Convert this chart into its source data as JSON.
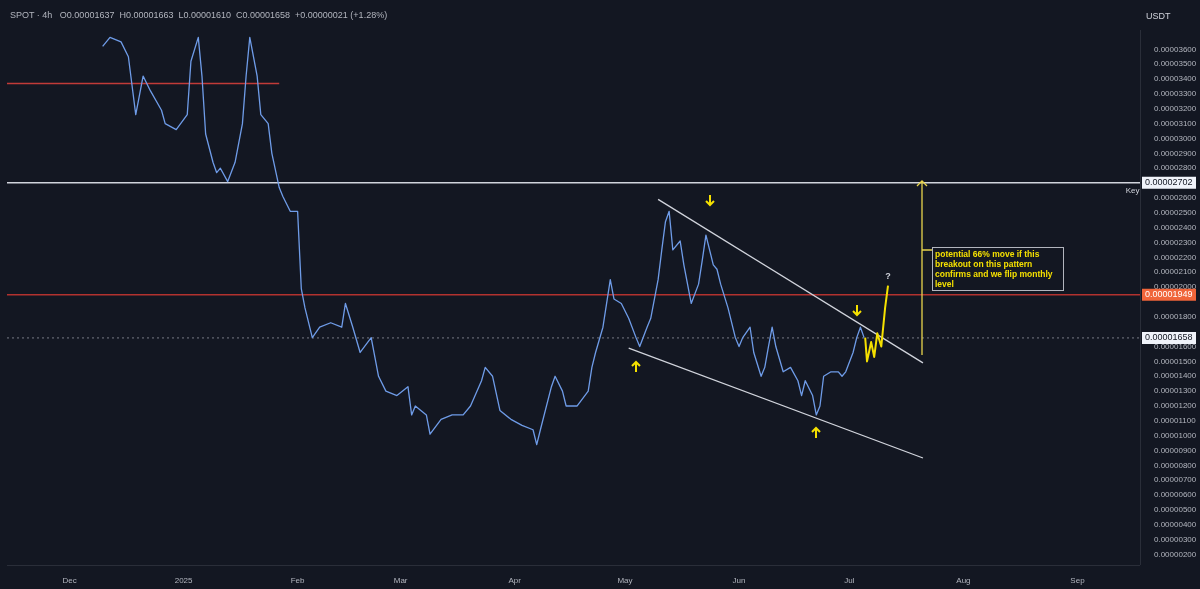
{
  "chart_data": {
    "type": "line",
    "title": "SPOT · 4h",
    "subtitle": "O0.00001637  H0.00001663  L0.00001610  C0.00001658  +0.00000021 (+1.28%)",
    "ylabel": "USDT",
    "xlim": [
      "2024-11-14",
      "2025-09-18"
    ],
    "ylim": [
      1.3e-06,
      3.73e-05
    ],
    "xticks": [
      {
        "value": "2024-12-01",
        "label": "Dec"
      },
      {
        "value": "2025-01-01",
        "label": "2025"
      },
      {
        "value": "2025-02-01",
        "label": "Feb"
      },
      {
        "value": "2025-03-01",
        "label": "Mar"
      },
      {
        "value": "2025-04-01",
        "label": "Apr"
      },
      {
        "value": "2025-05-01",
        "label": "May"
      },
      {
        "value": "2025-06-01",
        "label": "Jun"
      },
      {
        "value": "2025-07-01",
        "label": "Jul"
      },
      {
        "value": "2025-08-01",
        "label": "Aug"
      },
      {
        "value": "2025-09-01",
        "label": "Sep"
      }
    ],
    "yticks": [
      {
        "value": 2e-06,
        "label": "0.00000200"
      },
      {
        "value": 3e-06,
        "label": "0.00000300"
      },
      {
        "value": 4e-06,
        "label": "0.00000400"
      },
      {
        "value": 5e-06,
        "label": "0.00000500"
      },
      {
        "value": 6e-06,
        "label": "0.00000600"
      },
      {
        "value": 7e-06,
        "label": "0.00000700"
      },
      {
        "value": 8e-06,
        "label": "0.00000800"
      },
      {
        "value": 9e-06,
        "label": "0.00000900"
      },
      {
        "value": 1e-05,
        "label": "0.00001000"
      },
      {
        "value": 1.1e-05,
        "label": "0.00001100"
      },
      {
        "value": 1.2e-05,
        "label": "0.00001200"
      },
      {
        "value": 1.3e-05,
        "label": "0.00001300"
      },
      {
        "value": 1.4e-05,
        "label": "0.00001400"
      },
      {
        "value": 1.5e-05,
        "label": "0.00001500"
      },
      {
        "value": 1.6e-05,
        "label": "0.00001600"
      },
      {
        "value": 1.8e-05,
        "label": "0.00001800"
      },
      {
        "value": 2e-05,
        "label": "0.00002000"
      },
      {
        "value": 2.1e-05,
        "label": "0.00002100"
      },
      {
        "value": 2.2e-05,
        "label": "0.00002200"
      },
      {
        "value": 2.3e-05,
        "label": "0.00002300"
      },
      {
        "value": 2.4e-05,
        "label": "0.00002400"
      },
      {
        "value": 2.5e-05,
        "label": "0.00002500"
      },
      {
        "value": 2.6e-05,
        "label": "0.00002600"
      },
      {
        "value": 2.8e-05,
        "label": "0.00002800"
      },
      {
        "value": 2.9e-05,
        "label": "0.00002900"
      },
      {
        "value": 3e-05,
        "label": "0.00003000"
      },
      {
        "value": 3.1e-05,
        "label": "0.00003100"
      },
      {
        "value": 3.2e-05,
        "label": "0.00003200"
      },
      {
        "value": 3.3e-05,
        "label": "0.00003300"
      },
      {
        "value": 3.4e-05,
        "label": "0.00003400"
      },
      {
        "value": 3.5e-05,
        "label": "0.00003500"
      },
      {
        "value": 3.6e-05,
        "label": "0.00003600"
      }
    ],
    "series": [
      {
        "type": "line",
        "color": "#6f9ce8",
        "x": [
          "2024-12-10",
          "2024-12-12",
          "2024-12-15",
          "2024-12-17",
          "2024-12-19",
          "2024-12-21",
          "2024-12-23",
          "2024-12-26",
          "2024-12-27",
          "2024-12-30",
          "2025-01-02",
          "2025-01-03",
          "2025-01-05",
          "2025-01-06",
          "2025-01-07",
          "2025-01-09",
          "2025-01-10",
          "2025-01-11",
          "2025-01-13",
          "2025-01-15",
          "2025-01-17",
          "2025-01-18",
          "2025-01-19",
          "2025-01-21",
          "2025-01-22",
          "2025-01-24",
          "2025-01-25",
          "2025-01-27",
          "2025-01-28",
          "2025-01-30",
          "2025-02-01",
          "2025-02-02",
          "2025-02-03",
          "2025-02-05",
          "2025-02-07",
          "2025-02-10",
          "2025-02-13",
          "2025-02-14",
          "2025-02-16",
          "2025-02-18",
          "2025-02-21",
          "2025-02-23",
          "2025-02-25",
          "2025-02-28",
          "2025-03-03",
          "2025-03-04",
          "2025-03-05",
          "2025-03-08",
          "2025-03-09",
          "2025-03-12",
          "2025-03-15",
          "2025-03-18",
          "2025-03-20",
          "2025-03-23",
          "2025-03-24",
          "2025-03-26",
          "2025-03-28",
          "2025-03-31",
          "2025-04-03",
          "2025-04-06",
          "2025-04-07",
          "2025-04-08",
          "2025-04-11",
          "2025-04-12",
          "2025-04-14",
          "2025-04-15",
          "2025-04-18",
          "2025-04-21",
          "2025-04-22",
          "2025-04-23",
          "2025-04-25",
          "2025-04-27",
          "2025-04-28",
          "2025-04-30",
          "2025-05-02",
          "2025-05-04",
          "2025-05-05",
          "2025-05-07",
          "2025-05-08",
          "2025-05-10",
          "2025-05-11",
          "2025-05-12",
          "2025-05-13",
          "2025-05-14",
          "2025-05-16",
          "2025-05-17",
          "2025-05-19",
          "2025-05-21",
          "2025-05-22",
          "2025-05-23",
          "2025-05-25",
          "2025-05-26",
          "2025-05-27",
          "2025-05-29",
          "2025-05-31",
          "2025-06-01",
          "2025-06-02",
          "2025-06-04",
          "2025-06-05",
          "2025-06-07",
          "2025-06-08",
          "2025-06-09",
          "2025-06-10",
          "2025-06-11",
          "2025-06-13",
          "2025-06-15",
          "2025-06-17",
          "2025-06-18",
          "2025-06-19",
          "2025-06-21",
          "2025-06-22",
          "2025-06-23",
          "2025-06-24",
          "2025-06-26",
          "2025-06-28",
          "2025-06-29",
          "2025-06-30",
          "2025-07-02",
          "2025-07-03",
          "2025-07-04",
          "2025-07-05"
        ],
        "values": [
          3.62e-05,
          3.68e-05,
          3.65e-05,
          3.55e-05,
          3.16e-05,
          3.42e-05,
          3.32e-05,
          3.19e-05,
          3.1e-05,
          3.06e-05,
          3.16e-05,
          3.52e-05,
          3.68e-05,
          3.42e-05,
          3.03e-05,
          2.84e-05,
          2.77e-05,
          2.8e-05,
          2.71e-05,
          2.84e-05,
          3.1e-05,
          3.42e-05,
          3.68e-05,
          3.42e-05,
          3.16e-05,
          3.1e-05,
          2.9e-05,
          2.67e-05,
          2.61e-05,
          2.51e-05,
          2.51e-05,
          1.99e-05,
          1.86e-05,
          1.66e-05,
          1.73e-05,
          1.76e-05,
          1.73e-05,
          1.89e-05,
          1.73e-05,
          1.56e-05,
          1.66e-05,
          1.4e-05,
          1.3e-05,
          1.27e-05,
          1.33e-05,
          1.14e-05,
          1.2e-05,
          1.14e-05,
          1.01e-05,
          1.11e-05,
          1.14e-05,
          1.14e-05,
          1.2e-05,
          1.37e-05,
          1.46e-05,
          1.4e-05,
          1.17e-05,
          1.11e-05,
          1.07e-05,
          1.04e-05,
          9.4e-06,
          1.04e-05,
          1.33e-05,
          1.4e-05,
          1.3e-05,
          1.2e-05,
          1.2e-05,
          1.3e-05,
          1.46e-05,
          1.56e-05,
          1.73e-05,
          2.05e-05,
          1.92e-05,
          1.89e-05,
          1.79e-05,
          1.66e-05,
          1.6e-05,
          1.73e-05,
          1.79e-05,
          2.05e-05,
          2.25e-05,
          2.44e-05,
          2.51e-05,
          2.25e-05,
          2.31e-05,
          2.15e-05,
          1.89e-05,
          2.02e-05,
          2.18e-05,
          2.35e-05,
          2.15e-05,
          2.12e-05,
          2.02e-05,
          1.86e-05,
          1.66e-05,
          1.6e-05,
          1.66e-05,
          1.73e-05,
          1.56e-05,
          1.4e-05,
          1.46e-05,
          1.6e-05,
          1.73e-05,
          1.6e-05,
          1.43e-05,
          1.46e-05,
          1.37e-05,
          1.27e-05,
          1.37e-05,
          1.27e-05,
          1.14e-05,
          1.2e-05,
          1.4e-05,
          1.43e-05,
          1.43e-05,
          1.4e-05,
          1.43e-05,
          1.56e-05,
          1.66e-05,
          1.73e-05,
          1.66e-05
        ]
      },
      {
        "type": "line",
        "color": "#f5e000",
        "x": [
          "2025-07-05T07:00",
          "2025-07-05T19:00",
          "2025-07-06T22:00",
          "2025-07-07T18:00",
          "2025-07-08T14:00",
          "2025-07-09T16:00",
          "2025-07-10T17:00",
          "2025-07-11T12:00"
        ],
        "values": [
          1.66e-05,
          1.5e-05,
          1.63e-05,
          1.53e-05,
          1.69e-05,
          1.6e-05,
          1.86e-05,
          2.01e-05
        ]
      },
      {
        "type": "line",
        "color": "#d1d4dc",
        "x": [
          "2025-05-10",
          "2025-07-21"
        ],
        "values": [
          2.59e-05,
          1.49e-05
        ]
      },
      {
        "type": "line",
        "color": "#d1d4dc",
        "x": [
          "2025-05-02",
          "2025-07-21"
        ],
        "values": [
          1.59e-05,
          8.5e-06
        ]
      },
      {
        "type": "line",
        "color": "#c23b38",
        "x": [
          "2024-11-14",
          "2025-01-27"
        ],
        "values": [
          3.37e-05,
          3.37e-05
        ]
      }
    ],
    "ref_lines": [
      {
        "axis": "y",
        "value": 2.702e-05,
        "label": "0.00002702",
        "color": "#d1d4dc",
        "line_style": "solid"
      },
      {
        "axis": "y",
        "value": 1.949e-05,
        "label": "0.00001949",
        "color": "#b2322f",
        "line_style": "solid"
      },
      {
        "axis": "y",
        "value": 1.658e-05,
        "label": "0.00001658",
        "color": "#787b86",
        "line_style": "dotted"
      }
    ],
    "annotations": [
      "potential 66%  move if this breakout on this pattern confirms and we flip monthly level",
      {
        "text": "?",
        "x": "2025-07-11T12:00",
        "y": 2.01e-05
      },
      {
        "text": "Key",
        "x": "2025-09-16",
        "y": 2.702e-05
      }
    ]
  }
}
